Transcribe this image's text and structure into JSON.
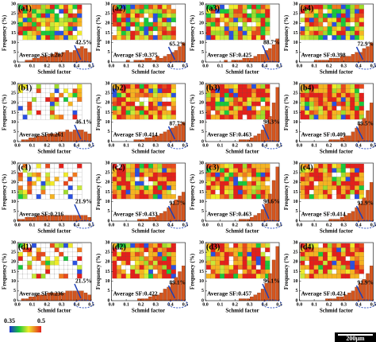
{
  "chart_data": [
    {
      "type": "histogram",
      "title": "(a1)",
      "annotations": [
        "Average SF:0.287",
        "42.5%"
      ],
      "bins": [
        0,
        0.025,
        0.05,
        0.075,
        0.1,
        0.125,
        0.15,
        0.175,
        0.2,
        0.225,
        0.25,
        0.275,
        0.3,
        0.325,
        0.35,
        0.375,
        0.4,
        0.425,
        0.45,
        0.475,
        0.5
      ],
      "values": [
        0,
        0,
        1,
        1,
        2,
        2,
        3,
        3,
        3,
        4,
        5,
        4,
        5,
        6,
        5,
        6,
        7,
        8,
        7,
        5
      ],
      "color": "#d4561f",
      "xlim": [
        0,
        0.5
      ],
      "ylim": [
        0,
        30
      ],
      "xticks": [
        {
          "value": 0,
          "label": "0.0"
        },
        0.1,
        0.2,
        0.3,
        0.4,
        0.5
      ],
      "yticks": [
        0,
        5,
        10,
        15,
        20,
        25,
        30
      ],
      "x_label": "Schmid factor",
      "y_label": "Frequency (%)"
    },
    {
      "type": "histogram",
      "title": "(a2)",
      "annotations": [
        "Average SF:0.375",
        "65.2%"
      ],
      "bins": [
        0,
        0.025,
        0.05,
        0.075,
        0.1,
        0.125,
        0.15,
        0.175,
        0.2,
        0.225,
        0.25,
        0.275,
        0.3,
        0.325,
        0.35,
        0.375,
        0.4,
        0.425,
        0.45,
        0.475,
        0.5
      ],
      "values": [
        0,
        0,
        0,
        0,
        1,
        0,
        1,
        1,
        1,
        2,
        2,
        1,
        3,
        2,
        3,
        4,
        5,
        6,
        8,
        10
      ],
      "color": "#d4561f",
      "xlim": [
        0,
        0.5
      ],
      "ylim": [
        0,
        30
      ],
      "xticks": [
        {
          "value": 0,
          "label": "0.0"
        },
        0.1,
        0.2,
        0.3,
        0.4,
        0.5
      ],
      "yticks": [
        0,
        5,
        10,
        15,
        20,
        25,
        30
      ],
      "x_label": "Schmid factor",
      "y_label": "Frequency (%)"
    },
    {
      "type": "histogram",
      "title": "(a3)",
      "annotations": [
        "Average SF:0.425",
        "88.7%"
      ],
      "bins": [
        0,
        0.025,
        0.05,
        0.075,
        0.1,
        0.125,
        0.15,
        0.175,
        0.2,
        0.225,
        0.25,
        0.275,
        0.3,
        0.325,
        0.35,
        0.375,
        0.4,
        0.425,
        0.45,
        0.475,
        0.5
      ],
      "values": [
        0,
        0,
        0,
        0,
        0,
        1,
        0,
        1,
        1,
        1,
        2,
        2,
        2,
        3,
        4,
        4,
        6,
        7,
        9,
        12
      ],
      "color": "#d4561f",
      "xlim": [
        0,
        0.5
      ],
      "ylim": [
        0,
        30
      ],
      "xticks": [
        {
          "value": 0,
          "label": "0.0"
        },
        0.1,
        0.2,
        0.3,
        0.4,
        0.5
      ],
      "yticks": [
        0,
        5,
        10,
        15,
        20,
        25,
        30
      ],
      "x_label": "Schmid factor",
      "y_label": "Frequency (%)"
    },
    {
      "type": "histogram",
      "title": "(a4)",
      "annotations": [
        "Average SF:0.398",
        "72.9%"
      ],
      "bins": [
        0,
        0.025,
        0.05,
        0.075,
        0.1,
        0.125,
        0.15,
        0.175,
        0.2,
        0.225,
        0.25,
        0.275,
        0.3,
        0.325,
        0.35,
        0.375,
        0.4,
        0.425,
        0.45,
        0.475,
        0.5
      ],
      "values": [
        0,
        0,
        0,
        0,
        1,
        1,
        1,
        1,
        2,
        2,
        2,
        3,
        3,
        3,
        4,
        5,
        5,
        7,
        8,
        10
      ],
      "color": "#d4561f",
      "xlim": [
        0,
        0.5
      ],
      "ylim": [
        0,
        30
      ],
      "xticks": [
        {
          "value": 0,
          "label": "0.0"
        },
        0.1,
        0.2,
        0.3,
        0.4,
        0.5
      ],
      "yticks": [
        0,
        5,
        10,
        15,
        20,
        25,
        30
      ],
      "x_label": "Schmid factor",
      "y_label": "Frequency (%)"
    },
    {
      "type": "histogram",
      "title": "(b1)",
      "annotations": [
        "Average SF:0.261",
        "46.1%"
      ],
      "bins": [
        0,
        0.025,
        0.05,
        0.075,
        0.1,
        0.125,
        0.15,
        0.175,
        0.2,
        0.225,
        0.25,
        0.275,
        0.3,
        0.325,
        0.35,
        0.375,
        0.4,
        0.425,
        0.45,
        0.475,
        0.5
      ],
      "values": [
        0,
        1,
        1,
        2,
        2,
        3,
        3,
        3,
        4,
        4,
        4,
        5,
        5,
        6,
        5,
        6,
        6,
        6,
        5,
        4
      ],
      "color": "#d4561f",
      "xlim": [
        0,
        0.5
      ],
      "ylim": [
        0,
        30
      ],
      "xticks": [
        {
          "value": 0,
          "label": "0.0"
        },
        0.1,
        0.2,
        0.3,
        0.4,
        0.5
      ],
      "yticks": [
        0,
        5,
        10,
        15,
        20,
        25,
        30
      ],
      "x_label": "Schmid factor",
      "y_label": "Frequency (%)"
    },
    {
      "type": "histogram",
      "title": "(b2)",
      "annotations": [
        "Average SF:0.414",
        "87.7%"
      ],
      "bins": [
        0,
        0.025,
        0.05,
        0.075,
        0.1,
        0.125,
        0.15,
        0.175,
        0.2,
        0.225,
        0.25,
        0.275,
        0.3,
        0.325,
        0.35,
        0.375,
        0.4,
        0.425,
        0.45,
        0.475,
        0.5
      ],
      "values": [
        0,
        0,
        0,
        0,
        0,
        0,
        1,
        1,
        1,
        2,
        2,
        3,
        3,
        4,
        5,
        6,
        7,
        8,
        9,
        10
      ],
      "color": "#d4561f",
      "xlim": [
        0,
        0.5
      ],
      "ylim": [
        0,
        30
      ],
      "xticks": [
        {
          "value": 0,
          "label": "0.0"
        },
        0.1,
        0.2,
        0.3,
        0.4,
        0.5
      ],
      "yticks": [
        0,
        5,
        10,
        15,
        20,
        25,
        30
      ],
      "x_label": "Schmid factor",
      "y_label": "Frequency (%)"
    },
    {
      "type": "histogram",
      "title": "(b3)",
      "annotations": [
        "Average SF:0.463",
        "98.3%"
      ],
      "bins": [
        0,
        0.025,
        0.05,
        0.075,
        0.1,
        0.125,
        0.15,
        0.175,
        0.2,
        0.225,
        0.25,
        0.275,
        0.3,
        0.325,
        0.35,
        0.375,
        0.4,
        0.425,
        0.45,
        0.475,
        0.5
      ],
      "values": [
        0,
        0,
        0,
        0,
        0,
        0,
        0,
        0,
        0,
        1,
        1,
        1,
        2,
        3,
        4,
        6,
        9,
        13,
        20,
        28
      ],
      "color": "#d4561f",
      "xlim": [
        0,
        0.5
      ],
      "ylim": [
        0,
        30
      ],
      "xticks": [
        {
          "value": 0,
          "label": "0.0"
        },
        0.1,
        0.2,
        0.3,
        0.4,
        0.5
      ],
      "yticks": [
        0,
        5,
        10,
        15,
        20,
        25,
        30
      ],
      "x_label": "Schmid factor",
      "y_label": "Frequency (%)"
    },
    {
      "type": "histogram",
      "title": "(b4)",
      "annotations": [
        "Average SF:0.409",
        "89.5%"
      ],
      "bins": [
        0,
        0.025,
        0.05,
        0.075,
        0.1,
        0.125,
        0.15,
        0.175,
        0.2,
        0.225,
        0.25,
        0.275,
        0.3,
        0.325,
        0.35,
        0.375,
        0.4,
        0.425,
        0.45,
        0.475,
        0.5
      ],
      "values": [
        0,
        0,
        0,
        0,
        0,
        0,
        0,
        0,
        1,
        1,
        1,
        2,
        3,
        3,
        5,
        7,
        9,
        12,
        16,
        20
      ],
      "color": "#d4561f",
      "xlim": [
        0,
        0.5
      ],
      "ylim": [
        0,
        30
      ],
      "xticks": [
        {
          "value": 0,
          "label": "0.0"
        },
        0.1,
        0.2,
        0.3,
        0.4,
        0.5
      ],
      "yticks": [
        0,
        5,
        10,
        15,
        20,
        25,
        30
      ],
      "x_label": "Schmid factor",
      "y_label": "Frequency (%)"
    },
    {
      "type": "histogram",
      "title": "(c1)",
      "annotations": [
        "Average SF:0.216",
        "21.9%"
      ],
      "bins": [
        0,
        0.025,
        0.05,
        0.075,
        0.1,
        0.125,
        0.15,
        0.175,
        0.2,
        0.225,
        0.25,
        0.275,
        0.3,
        0.325,
        0.35,
        0.375,
        0.4,
        0.425,
        0.45,
        0.475,
        0.5
      ],
      "values": [
        1,
        1,
        2,
        2,
        2,
        3,
        3,
        3,
        3,
        3,
        3,
        3,
        3,
        3,
        3,
        3,
        3,
        3,
        3,
        2
      ],
      "color": "#d4561f",
      "xlim": [
        0,
        0.5
      ],
      "ylim": [
        0,
        30
      ],
      "xticks": [
        {
          "value": 0,
          "label": "0.0"
        },
        0.1,
        0.2,
        0.3,
        0.4,
        0.5
      ],
      "yticks": [
        0,
        5,
        10,
        15,
        20,
        25,
        30
      ],
      "x_label": "Schmid factor",
      "y_label": "Frequency (%)"
    },
    {
      "type": "histogram",
      "title": "(c2)",
      "annotations": [
        "Average SF:0.433",
        "91.7%"
      ],
      "bins": [
        0,
        0.025,
        0.05,
        0.075,
        0.1,
        0.125,
        0.15,
        0.175,
        0.2,
        0.225,
        0.25,
        0.275,
        0.3,
        0.325,
        0.35,
        0.375,
        0.4,
        0.425,
        0.45,
        0.475,
        0.5
      ],
      "values": [
        0,
        0,
        0,
        0,
        0,
        0,
        0,
        1,
        1,
        1,
        2,
        2,
        3,
        4,
        5,
        7,
        9,
        11,
        13,
        15
      ],
      "color": "#d4561f",
      "xlim": [
        0,
        0.5
      ],
      "ylim": [
        0,
        30
      ],
      "xticks": [
        {
          "value": 0,
          "label": "0.0"
        },
        0.1,
        0.2,
        0.3,
        0.4,
        0.5
      ],
      "yticks": [
        0,
        5,
        10,
        15,
        20,
        25,
        30
      ],
      "x_label": "Schmid factor",
      "y_label": "Frequency (%)"
    },
    {
      "type": "histogram",
      "title": "(c3)",
      "annotations": [
        "Average SF:0.463",
        "98.6%"
      ],
      "bins": [
        0,
        0.025,
        0.05,
        0.075,
        0.1,
        0.125,
        0.15,
        0.175,
        0.2,
        0.225,
        0.25,
        0.275,
        0.3,
        0.325,
        0.35,
        0.375,
        0.4,
        0.425,
        0.45,
        0.475,
        0.5
      ],
      "values": [
        0,
        0,
        0,
        0,
        0,
        0,
        0,
        0,
        0,
        1,
        1,
        1,
        2,
        3,
        4,
        6,
        9,
        14,
        21,
        28
      ],
      "color": "#d4561f",
      "xlim": [
        0,
        0.5
      ],
      "ylim": [
        0,
        30
      ],
      "xticks": [
        {
          "value": 0,
          "label": "0.0"
        },
        0.1,
        0.2,
        0.3,
        0.4,
        0.5
      ],
      "yticks": [
        0,
        5,
        10,
        15,
        20,
        25,
        30
      ],
      "x_label": "Schmid factor",
      "y_label": "Frequency (%)"
    },
    {
      "type": "histogram",
      "title": "(c4)",
      "annotations": [
        "Average SF:0.414",
        "91.9%"
      ],
      "bins": [
        0,
        0.025,
        0.05,
        0.075,
        0.1,
        0.125,
        0.15,
        0.175,
        0.2,
        0.225,
        0.25,
        0.275,
        0.3,
        0.325,
        0.35,
        0.375,
        0.4,
        0.425,
        0.45,
        0.475,
        0.5
      ],
      "values": [
        0,
        0,
        0,
        0,
        0,
        0,
        0,
        0,
        1,
        1,
        1,
        2,
        3,
        4,
        5,
        7,
        9,
        12,
        16,
        20
      ],
      "color": "#d4561f",
      "xlim": [
        0,
        0.5
      ],
      "ylim": [
        0,
        30
      ],
      "xticks": [
        {
          "value": 0,
          "label": "0.0"
        },
        0.1,
        0.2,
        0.3,
        0.4,
        0.5
      ],
      "yticks": [
        0,
        5,
        10,
        15,
        20,
        25,
        30
      ],
      "x_label": "Schmid factor",
      "y_label": "Frequency (%)"
    },
    {
      "type": "histogram",
      "title": "(d1)",
      "annotations": [
        "Average SF:0.236",
        "21.5%"
      ],
      "bins": [
        0,
        0.025,
        0.05,
        0.075,
        0.1,
        0.125,
        0.15,
        0.175,
        0.2,
        0.225,
        0.25,
        0.275,
        0.3,
        0.325,
        0.35,
        0.375,
        0.4,
        0.425,
        0.45,
        0.475,
        0.5
      ],
      "values": [
        0,
        1,
        1,
        2,
        2,
        3,
        3,
        3,
        4,
        4,
        4,
        4,
        4,
        5,
        5,
        5,
        5,
        5,
        4,
        3
      ],
      "color": "#d4561f",
      "xlim": [
        0,
        0.5
      ],
      "ylim": [
        0,
        30
      ],
      "xticks": [
        {
          "value": 0,
          "label": "0.0"
        },
        0.1,
        0.2,
        0.3,
        0.4,
        0.5
      ],
      "yticks": [
        0,
        5,
        10,
        15,
        20,
        25,
        30
      ],
      "x_label": "Schmid factor",
      "y_label": "Frequency (%)"
    },
    {
      "type": "histogram",
      "title": "(d2)",
      "annotations": [
        "Average SF:0.422",
        "89.1%"
      ],
      "bins": [
        0,
        0.025,
        0.05,
        0.075,
        0.1,
        0.125,
        0.15,
        0.175,
        0.2,
        0.225,
        0.25,
        0.275,
        0.3,
        0.325,
        0.35,
        0.375,
        0.4,
        0.425,
        0.45,
        0.475,
        0.5
      ],
      "values": [
        0,
        0,
        0,
        0,
        0,
        0,
        0,
        1,
        1,
        1,
        2,
        3,
        3,
        4,
        6,
        7,
        9,
        12,
        15,
        18
      ],
      "color": "#d4561f",
      "xlim": [
        0,
        0.5
      ],
      "ylim": [
        0,
        30
      ],
      "xticks": [
        {
          "value": 0,
          "label": "0.0"
        },
        0.1,
        0.2,
        0.3,
        0.4,
        0.5
      ],
      "yticks": [
        0,
        5,
        10,
        15,
        20,
        25,
        30
      ],
      "x_label": "Schmid factor",
      "y_label": "Frequency (%)"
    },
    {
      "type": "histogram",
      "title": "(d3)",
      "annotations": [
        "Average SF:0.457",
        "96.1%"
      ],
      "bins": [
        0,
        0.025,
        0.05,
        0.075,
        0.1,
        0.125,
        0.15,
        0.175,
        0.2,
        0.225,
        0.25,
        0.275,
        0.3,
        0.325,
        0.35,
        0.375,
        0.4,
        0.425,
        0.45,
        0.475,
        0.5
      ],
      "values": [
        0,
        0,
        0,
        0,
        0,
        0,
        0,
        0,
        0,
        1,
        1,
        1,
        2,
        3,
        4,
        6,
        9,
        14,
        21,
        28
      ],
      "color": "#d4561f",
      "xlim": [
        0,
        0.5
      ],
      "ylim": [
        0,
        30
      ],
      "xticks": [
        {
          "value": 0,
          "label": "0.0"
        },
        0.1,
        0.2,
        0.3,
        0.4,
        0.5
      ],
      "yticks": [
        0,
        5,
        10,
        15,
        20,
        25,
        30
      ],
      "x_label": "Schmid factor",
      "y_label": "Frequency (%)"
    },
    {
      "type": "histogram",
      "title": "(d4)",
      "annotations": [
        "Average SF:0.424",
        "91.9%"
      ],
      "bins": [
        0,
        0.025,
        0.05,
        0.075,
        0.1,
        0.125,
        0.15,
        0.175,
        0.2,
        0.225,
        0.25,
        0.275,
        0.3,
        0.325,
        0.35,
        0.375,
        0.4,
        0.425,
        0.45,
        0.475,
        0.5
      ],
      "values": [
        0,
        0,
        0,
        0,
        0,
        0,
        0,
        1,
        1,
        1,
        2,
        2,
        3,
        4,
        5,
        7,
        9,
        11,
        14,
        18
      ],
      "color": "#d4561f",
      "xlim": [
        0,
        0.5
      ],
      "ylim": [
        0,
        30
      ],
      "xticks": [
        {
          "value": 0,
          "label": "0.0"
        },
        0.1,
        0.2,
        0.3,
        0.4,
        0.5
      ],
      "yticks": [
        0,
        5,
        10,
        15,
        20,
        25,
        30
      ],
      "x_label": "Schmid factor",
      "y_label": "Frequency (%)"
    }
  ],
  "colorbar": {
    "lim": [
      0.35,
      0.5
    ],
    "ticks": [
      0.35,
      0.5
    ]
  },
  "scale_bar": "200μm"
}
